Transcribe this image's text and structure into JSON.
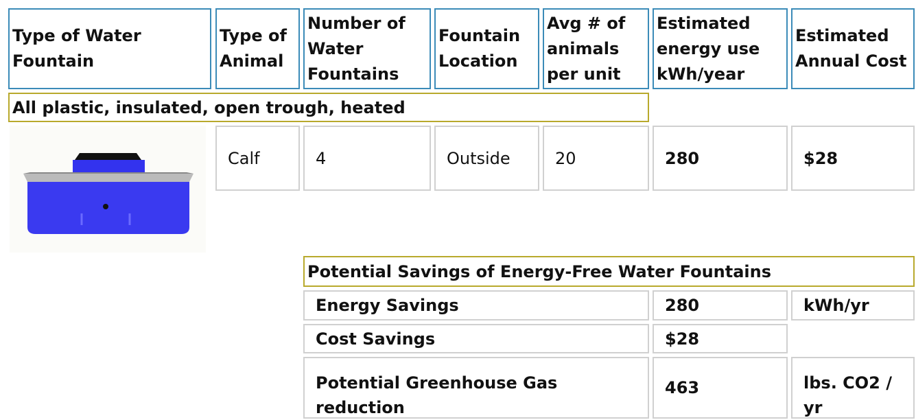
{
  "header": [
    "Type of Water Fountain",
    "Type of Animal",
    "Number of Water Fountains",
    "Fountain Location",
    "Avg # of animals per unit",
    "Estimated energy use kWh/year",
    "Estimated Annual Cost"
  ],
  "section_title": "All plastic, insulated, open trough, heated",
  "row": [
    "Calf",
    "4",
    "Outside",
    "20",
    "280",
    "$28"
  ],
  "savings": {
    "title": "Potential Savings of Energy-Free Water Fountains",
    "rows": [
      [
        "Energy Savings",
        "280",
        "kWh/yr"
      ],
      [
        "Cost Savings",
        "$28"
      ],
      [
        "Potential Greenhouse Gas reduction",
        "463",
        "lbs. CO2 / yr"
      ]
    ]
  }
}
